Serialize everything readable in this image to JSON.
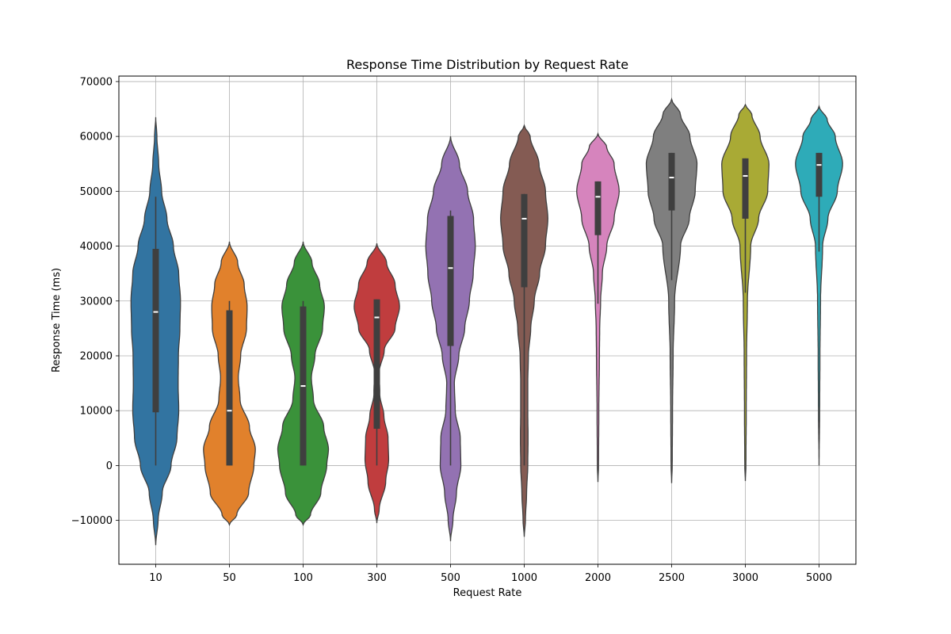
{
  "chart_data": {
    "type": "violin",
    "title": "Response Time Distribution by Request Rate",
    "xlabel": "Request Rate",
    "ylabel": "Response Time (ms)",
    "ylim": [
      -18000,
      71000
    ],
    "yticks": [
      -10000,
      0,
      10000,
      20000,
      30000,
      40000,
      50000,
      60000,
      70000
    ],
    "ytick_labels": [
      "−10000",
      "0",
      "10000",
      "20000",
      "30000",
      "40000",
      "50000",
      "60000",
      "70000"
    ],
    "grid": true,
    "categories": [
      "10",
      "50",
      "100",
      "300",
      "500",
      "1000",
      "2000",
      "2500",
      "3000",
      "5000"
    ],
    "series": [
      {
        "category": "10",
        "color": "#3274a1",
        "min": 0,
        "q1": 9700,
        "median": 28000,
        "q3": 39500,
        "max": 49000,
        "kde_range": [
          -14500,
          63500
        ],
        "density": [
          [
            -14500,
            0
          ],
          [
            -10000,
            0.08
          ],
          [
            -5000,
            0.22
          ],
          [
            0,
            0.52
          ],
          [
            5000,
            0.72
          ],
          [
            10000,
            0.78
          ],
          [
            15000,
            0.76
          ],
          [
            20000,
            0.77
          ],
          [
            25000,
            0.82
          ],
          [
            30000,
            0.84
          ],
          [
            35000,
            0.78
          ],
          [
            40000,
            0.6
          ],
          [
            45000,
            0.38
          ],
          [
            50000,
            0.2
          ],
          [
            55000,
            0.1
          ],
          [
            60000,
            0.04
          ],
          [
            63500,
            0
          ]
        ]
      },
      {
        "category": "50",
        "color": "#e1812c",
        "min": 0,
        "q1": 0,
        "median": 10000,
        "q3": 28300,
        "max": 30000,
        "kde_range": [
          -10800,
          40800
        ],
        "density": [
          [
            -10800,
            0
          ],
          [
            -9000,
            0.25
          ],
          [
            -5000,
            0.65
          ],
          [
            0,
            0.83
          ],
          [
            3000,
            0.88
          ],
          [
            7000,
            0.68
          ],
          [
            12000,
            0.36
          ],
          [
            16000,
            0.3
          ],
          [
            20000,
            0.38
          ],
          [
            25000,
            0.58
          ],
          [
            29000,
            0.6
          ],
          [
            33000,
            0.5
          ],
          [
            37000,
            0.28
          ],
          [
            40800,
            0
          ]
        ]
      },
      {
        "category": "100",
        "color": "#3a923a",
        "min": 0,
        "q1": 0,
        "median": 14500,
        "q3": 29000,
        "max": 30000,
        "kde_range": [
          -10800,
          40800
        ],
        "density": [
          [
            -10800,
            0
          ],
          [
            -9000,
            0.25
          ],
          [
            -5000,
            0.6
          ],
          [
            0,
            0.8
          ],
          [
            3000,
            0.86
          ],
          [
            7000,
            0.7
          ],
          [
            12000,
            0.35
          ],
          [
            16000,
            0.28
          ],
          [
            20000,
            0.4
          ],
          [
            25000,
            0.66
          ],
          [
            29000,
            0.72
          ],
          [
            33000,
            0.56
          ],
          [
            37000,
            0.3
          ],
          [
            40800,
            0
          ]
        ]
      },
      {
        "category": "300",
        "color": "#c03d3e",
        "min": 0,
        "q1": 6700,
        "median": 27000,
        "q3": 30300,
        "max": 30300,
        "kde_range": [
          -10500,
          40500
        ],
        "density": [
          [
            -10500,
            0
          ],
          [
            -8000,
            0.08
          ],
          [
            -3000,
            0.3
          ],
          [
            1000,
            0.4
          ],
          [
            5000,
            0.38
          ],
          [
            9000,
            0.24
          ],
          [
            13000,
            0.1
          ],
          [
            17000,
            0.08
          ],
          [
            21000,
            0.25
          ],
          [
            25000,
            0.62
          ],
          [
            29000,
            0.77
          ],
          [
            33000,
            0.62
          ],
          [
            37000,
            0.33
          ],
          [
            40500,
            0
          ]
        ]
      },
      {
        "category": "500",
        "color": "#9372b2",
        "min": 0,
        "q1": 21800,
        "median": 36000,
        "q3": 45500,
        "max": 46500,
        "kde_range": [
          -13800,
          60000
        ],
        "density": [
          [
            -13800,
            0
          ],
          [
            -10000,
            0.08
          ],
          [
            -5000,
            0.2
          ],
          [
            0,
            0.35
          ],
          [
            5000,
            0.33
          ],
          [
            10000,
            0.16
          ],
          [
            15000,
            0.13
          ],
          [
            20000,
            0.28
          ],
          [
            25000,
            0.48
          ],
          [
            30000,
            0.64
          ],
          [
            35000,
            0.77
          ],
          [
            40000,
            0.84
          ],
          [
            45000,
            0.78
          ],
          [
            50000,
            0.58
          ],
          [
            55000,
            0.3
          ],
          [
            60000,
            0
          ]
        ]
      },
      {
        "category": "1000",
        "color": "#845b53",
        "min": 0,
        "q1": 32500,
        "median": 45000,
        "q3": 49500,
        "max": 49500,
        "kde_range": [
          -13000,
          62000
        ],
        "density": [
          [
            -13000,
            0
          ],
          [
            -10000,
            0.04
          ],
          [
            -5000,
            0.08
          ],
          [
            0,
            0.12
          ],
          [
            5000,
            0.13
          ],
          [
            10000,
            0.12
          ],
          [
            15000,
            0.12
          ],
          [
            20000,
            0.14
          ],
          [
            25000,
            0.22
          ],
          [
            30000,
            0.34
          ],
          [
            35000,
            0.52
          ],
          [
            40000,
            0.72
          ],
          [
            45000,
            0.8
          ],
          [
            50000,
            0.72
          ],
          [
            55000,
            0.5
          ],
          [
            60000,
            0.2
          ],
          [
            62000,
            0
          ]
        ]
      },
      {
        "category": "2000",
        "color": "#d684bd",
        "min": 29500,
        "q1": 42000,
        "median": 49000,
        "q3": 51800,
        "max": 51800,
        "kde_range": [
          -3000,
          60500
        ],
        "density": [
          [
            -3000,
            0
          ],
          [
            0,
            0.02
          ],
          [
            10000,
            0.03
          ],
          [
            20000,
            0.05
          ],
          [
            25000,
            0.06
          ],
          [
            30000,
            0.09
          ],
          [
            35000,
            0.15
          ],
          [
            40000,
            0.3
          ],
          [
            45000,
            0.55
          ],
          [
            50000,
            0.72
          ],
          [
            55000,
            0.55
          ],
          [
            58000,
            0.3
          ],
          [
            60500,
            0
          ]
        ]
      },
      {
        "category": "2500",
        "color": "#7f7f7f",
        "min": 33800,
        "q1": 46500,
        "median": 52500,
        "q3": 57000,
        "max": 57000,
        "kde_range": [
          -3200,
          66800
        ],
        "density": [
          [
            -3200,
            0
          ],
          [
            0,
            0.02
          ],
          [
            10000,
            0.03
          ],
          [
            20000,
            0.05
          ],
          [
            30000,
            0.1
          ],
          [
            40000,
            0.3
          ],
          [
            45000,
            0.6
          ],
          [
            50000,
            0.8
          ],
          [
            55000,
            0.86
          ],
          [
            60000,
            0.62
          ],
          [
            64000,
            0.3
          ],
          [
            66800,
            0
          ]
        ]
      },
      {
        "category": "3000",
        "color": "#a9aa35",
        "min": 31500,
        "q1": 45000,
        "median": 52800,
        "q3": 56000,
        "max": 56000,
        "kde_range": [
          -2800,
          65800
        ],
        "density": [
          [
            -2800,
            0
          ],
          [
            0,
            0.02
          ],
          [
            10000,
            0.03
          ],
          [
            20000,
            0.04
          ],
          [
            30000,
            0.07
          ],
          [
            40000,
            0.18
          ],
          [
            45000,
            0.45
          ],
          [
            50000,
            0.76
          ],
          [
            55000,
            0.8
          ],
          [
            60000,
            0.5
          ],
          [
            64000,
            0.22
          ],
          [
            65800,
            0
          ]
        ]
      },
      {
        "category": "5000",
        "color": "#2eabb8",
        "min": 39000,
        "q1": 49000,
        "median": 54800,
        "q3": 57000,
        "max": 57000,
        "kde_range": [
          0,
          65500
        ],
        "density": [
          [
            0,
            0
          ],
          [
            10000,
            0.02
          ],
          [
            20000,
            0.03
          ],
          [
            30000,
            0.05
          ],
          [
            40000,
            0.12
          ],
          [
            45000,
            0.3
          ],
          [
            50000,
            0.62
          ],
          [
            55000,
            0.8
          ],
          [
            60000,
            0.55
          ],
          [
            63000,
            0.28
          ],
          [
            65500,
            0
          ]
        ]
      }
    ]
  }
}
